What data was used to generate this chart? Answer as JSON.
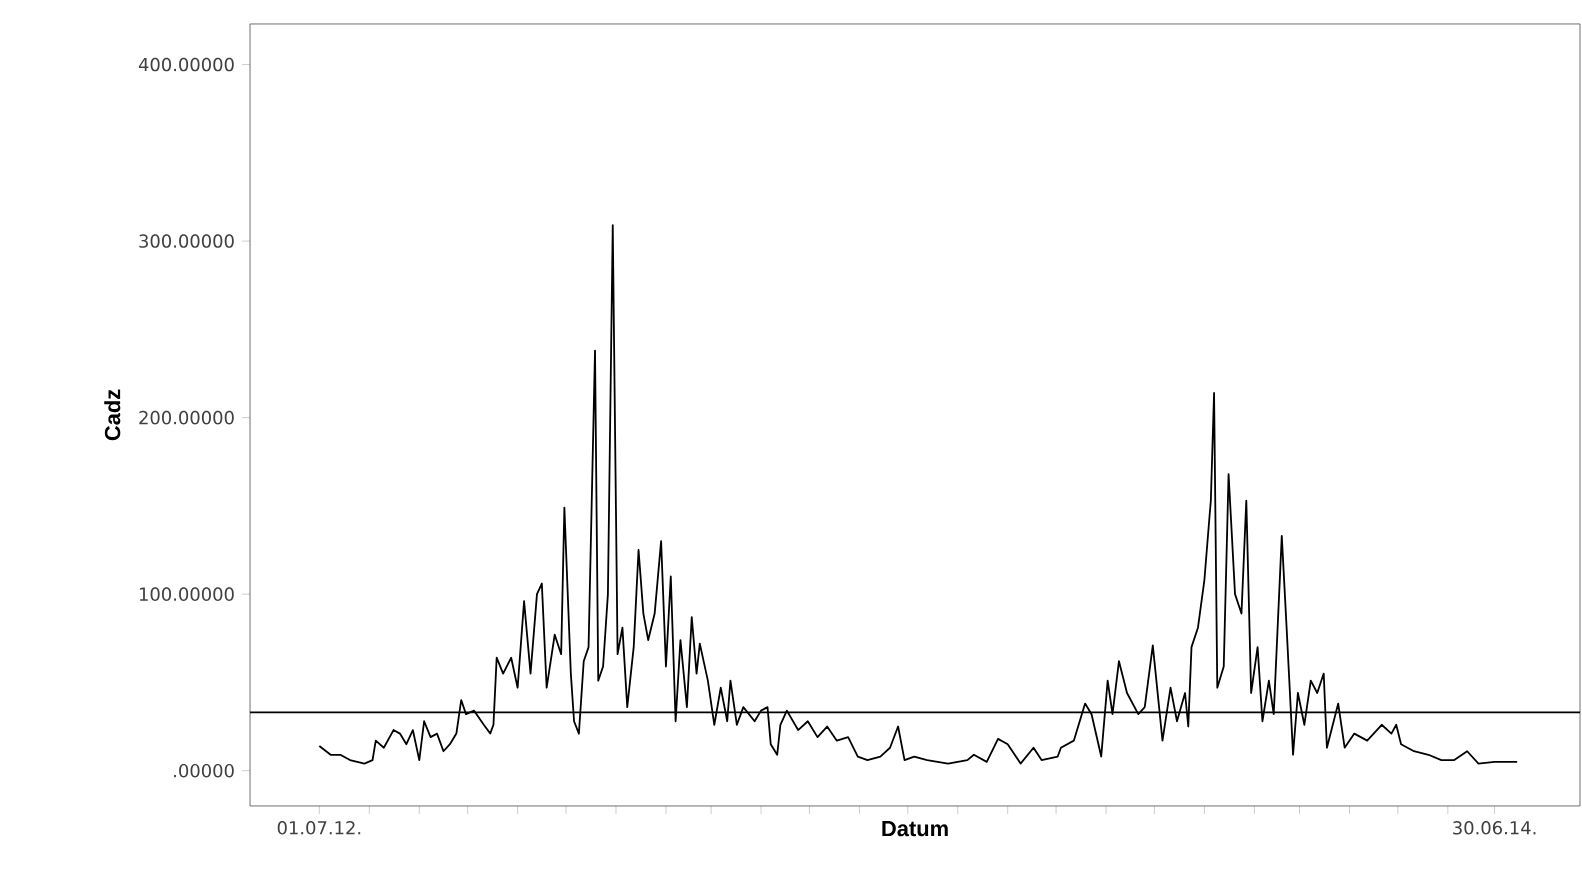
{
  "chart_data": {
    "type": "line",
    "xlabel": "Datum",
    "ylabel": "Cadz",
    "x": [
      "2012-07-01",
      "2012-07-08",
      "2012-07-14",
      "2012-07-20",
      "2012-07-29",
      "2012-08-03",
      "2012-08-05",
      "2012-08-10",
      "2012-08-16",
      "2012-08-20",
      "2012-08-24",
      "2012-08-28",
      "2012-09-01",
      "2012-09-04",
      "2012-09-08",
      "2012-09-12",
      "2012-09-16",
      "2012-09-20",
      "2012-09-24",
      "2012-09-27",
      "2012-09-30",
      "2012-10-05",
      "2012-10-11",
      "2012-10-15",
      "2012-10-17",
      "2012-10-19",
      "2012-10-23",
      "2012-10-28",
      "2012-11-01",
      "2012-11-05",
      "2012-11-09",
      "2012-11-13",
      "2012-11-16",
      "2012-11-19",
      "2012-11-24",
      "2012-11-28",
      "2012-11-30",
      "2012-12-04",
      "2012-12-06",
      "2012-12-09",
      "2012-12-12",
      "2012-12-15",
      "2012-12-19",
      "2012-12-21",
      "2012-12-24",
      "2012-12-27",
      "2012-12-30",
      "2013-01-02",
      "2013-01-05",
      "2013-01-08",
      "2013-01-12",
      "2013-01-15",
      "2013-01-18",
      "2013-01-21",
      "2013-01-25",
      "2013-01-29",
      "2013-02-01",
      "2013-02-04",
      "2013-02-07",
      "2013-02-10",
      "2013-02-14",
      "2013-02-17",
      "2013-02-20",
      "2013-02-22",
      "2013-02-27",
      "2013-03-03",
      "2013-03-07",
      "2013-03-11",
      "2013-03-13",
      "2013-03-17",
      "2013-03-21",
      "2013-03-28",
      "2013-04-01",
      "2013-04-05",
      "2013-04-07",
      "2013-04-11",
      "2013-04-13",
      "2013-04-17",
      "2013-04-24",
      "2013-04-30",
      "2013-05-06",
      "2013-05-12",
      "2013-05-18",
      "2013-05-25",
      "2013-05-31",
      "2013-06-06",
      "2013-06-14",
      "2013-06-20",
      "2013-06-25",
      "2013-06-29",
      "2013-07-05",
      "2013-07-13",
      "2013-07-26",
      "2013-08-01",
      "2013-08-07",
      "2013-08-11",
      "2013-08-19",
      "2013-08-26",
      "2013-09-01",
      "2013-09-09",
      "2013-09-17",
      "2013-09-22",
      "2013-10-02",
      "2013-10-04",
      "2013-10-12",
      "2013-10-19",
      "2013-10-23",
      "2013-10-29",
      "2013-11-02",
      "2013-11-05",
      "2013-11-09",
      "2013-11-14",
      "2013-11-21",
      "2013-11-25",
      "2013-11-30",
      "2013-12-06",
      "2013-12-11",
      "2013-12-15",
      "2013-12-20",
      "2013-12-22",
      "2013-12-24",
      "2013-12-28",
      "2014-01-01",
      "2014-01-04",
      "2014-01-05",
      "2014-01-07",
      "2014-01-09",
      "2014-01-13",
      "2014-01-16",
      "2014-01-20",
      "2014-01-24",
      "2014-01-27",
      "2014-01-30",
      "2014-02-03",
      "2014-02-06",
      "2014-02-10",
      "2014-02-13",
      "2014-02-18",
      "2014-02-21",
      "2014-02-25",
      "2014-02-28",
      "2014-03-04",
      "2014-03-08",
      "2014-03-12",
      "2014-03-16",
      "2014-03-18",
      "2014-03-25",
      "2014-03-29",
      "2014-04-04",
      "2014-04-12",
      "2014-04-21",
      "2014-04-27",
      "2014-04-30",
      "2014-05-03",
      "2014-05-11",
      "2014-05-20",
      "2014-05-28",
      "2014-06-05",
      "2014-06-13",
      "2014-06-20",
      "2014-06-30",
      "2014-07-14"
    ],
    "series": [
      {
        "color": "#000000",
        "values": [
          14,
          9,
          9,
          6,
          4,
          6,
          17,
          13,
          23,
          21,
          15,
          23,
          6,
          28,
          19,
          21,
          11,
          15,
          21,
          40,
          32,
          34,
          26,
          21,
          26,
          64,
          55,
          64,
          47,
          96,
          55,
          100,
          106,
          47,
          77,
          66,
          149,
          55,
          28,
          21,
          62,
          70,
          238,
          51,
          59,
          100,
          309,
          66,
          81,
          36,
          70,
          125,
          89,
          74,
          89,
          130,
          59,
          110,
          28,
          74,
          36,
          87,
          55,
          72,
          51,
          26,
          47,
          28,
          51,
          26,
          36,
          28,
          34,
          36,
          15,
          9,
          26,
          34,
          23,
          28,
          19,
          25,
          17,
          19,
          8,
          6,
          8,
          13,
          25,
          6,
          8,
          6,
          4,
          5,
          6,
          9,
          5,
          18,
          15,
          4,
          13,
          6,
          8,
          13,
          17,
          38,
          32,
          8,
          51,
          32,
          62,
          44,
          32,
          36,
          71,
          17,
          47,
          28,
          44,
          25,
          70,
          81,
          108,
          142,
          153,
          214,
          47,
          59,
          168,
          100,
          89,
          153,
          44,
          70,
          28,
          51,
          32,
          133,
          81,
          9,
          44,
          26,
          51,
          44,
          55,
          13,
          38,
          13,
          21,
          17,
          26,
          21,
          26,
          15,
          11,
          9,
          6,
          6,
          11,
          4,
          5,
          5
        ]
      }
    ],
    "xlim": [
      "2012-05-19",
      "2014-08-22"
    ],
    "ylim": [
      -20,
      423
    ],
    "xticks": [
      {
        "value": "2012-07-01",
        "label": "01.07.12."
      },
      {
        "value": "2012-08-01",
        "label": null
      },
      {
        "value": "2012-09-01",
        "label": null
      },
      {
        "value": "2012-10-01",
        "label": null
      },
      {
        "value": "2012-11-01",
        "label": null
      },
      {
        "value": "2012-12-01",
        "label": null
      },
      {
        "value": "2013-01-01",
        "label": null
      },
      {
        "value": "2013-02-01",
        "label": null
      },
      {
        "value": "2013-03-01",
        "label": null
      },
      {
        "value": "2013-04-01",
        "label": null
      },
      {
        "value": "2013-05-01",
        "label": null
      },
      {
        "value": "2013-06-01",
        "label": null
      },
      {
        "value": "2013-07-01",
        "label": null
      },
      {
        "value": "2013-08-01",
        "label": null
      },
      {
        "value": "2013-09-01",
        "label": null
      },
      {
        "value": "2013-10-01",
        "label": null
      },
      {
        "value": "2013-11-01",
        "label": null
      },
      {
        "value": "2013-12-01",
        "label": null
      },
      {
        "value": "2014-01-01",
        "label": null
      },
      {
        "value": "2014-02-01",
        "label": null
      },
      {
        "value": "2014-03-01",
        "label": null
      },
      {
        "value": "2014-04-01",
        "label": null
      },
      {
        "value": "2014-05-01",
        "label": null
      },
      {
        "value": "2014-06-01",
        "label": null
      },
      {
        "value": "2014-06-30",
        "label": "30.06.14."
      }
    ],
    "yticks": [
      {
        "value": 0,
        "label": ".00000"
      },
      {
        "value": 100,
        "label": "100.00000"
      },
      {
        "value": 200,
        "label": "200.00000"
      },
      {
        "value": 300,
        "label": "300.00000"
      },
      {
        "value": 400,
        "label": "400.00000"
      }
    ],
    "ref_lines": [
      {
        "axis": "y",
        "value": 33,
        "color": "#000000"
      }
    ],
    "grid": false,
    "marker": "none",
    "line_style": "solid"
  }
}
